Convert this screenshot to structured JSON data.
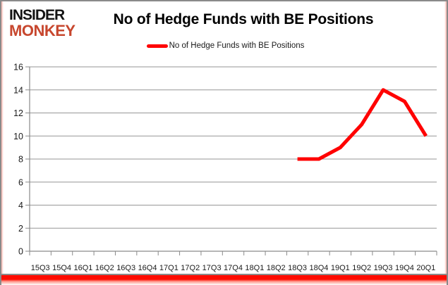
{
  "logo": {
    "line1": "INSIDER",
    "line2": "MONKEY"
  },
  "header": {
    "title": "No of Hedge Funds with BE Positions"
  },
  "legend": {
    "label": "No of Hedge Funds with BE Positions",
    "marker_color": "#ff0000"
  },
  "colors": {
    "line": "#ff0000",
    "grid": "#969696",
    "axis": "#8a8a8a",
    "tick_label": "#1a1a1a",
    "logo_red": "#c7472e"
  },
  "chart_data": {
    "type": "line",
    "title": "No of Hedge Funds with BE Positions",
    "xlabel": "",
    "ylabel": "",
    "categories": [
      "15Q3",
      "15Q4",
      "16Q1",
      "16Q2",
      "16Q3",
      "16Q4",
      "17Q1",
      "17Q2",
      "17Q3",
      "17Q4",
      "18Q1",
      "18Q2",
      "18Q3",
      "18Q4",
      "19Q1",
      "19Q2",
      "19Q3",
      "19Q4",
      "20Q1"
    ],
    "series": [
      {
        "name": "No of Hedge Funds with BE Positions",
        "color": "#ff0000",
        "values": [
          null,
          null,
          null,
          null,
          null,
          null,
          null,
          null,
          null,
          null,
          null,
          null,
          8,
          8,
          9,
          11,
          14,
          13,
          10
        ]
      }
    ],
    "ylim": [
      0,
      16
    ],
    "yticks": [
      0,
      2,
      4,
      6,
      8,
      10,
      12,
      14,
      16
    ],
    "grid": "horizontal",
    "legend_position": "top"
  }
}
